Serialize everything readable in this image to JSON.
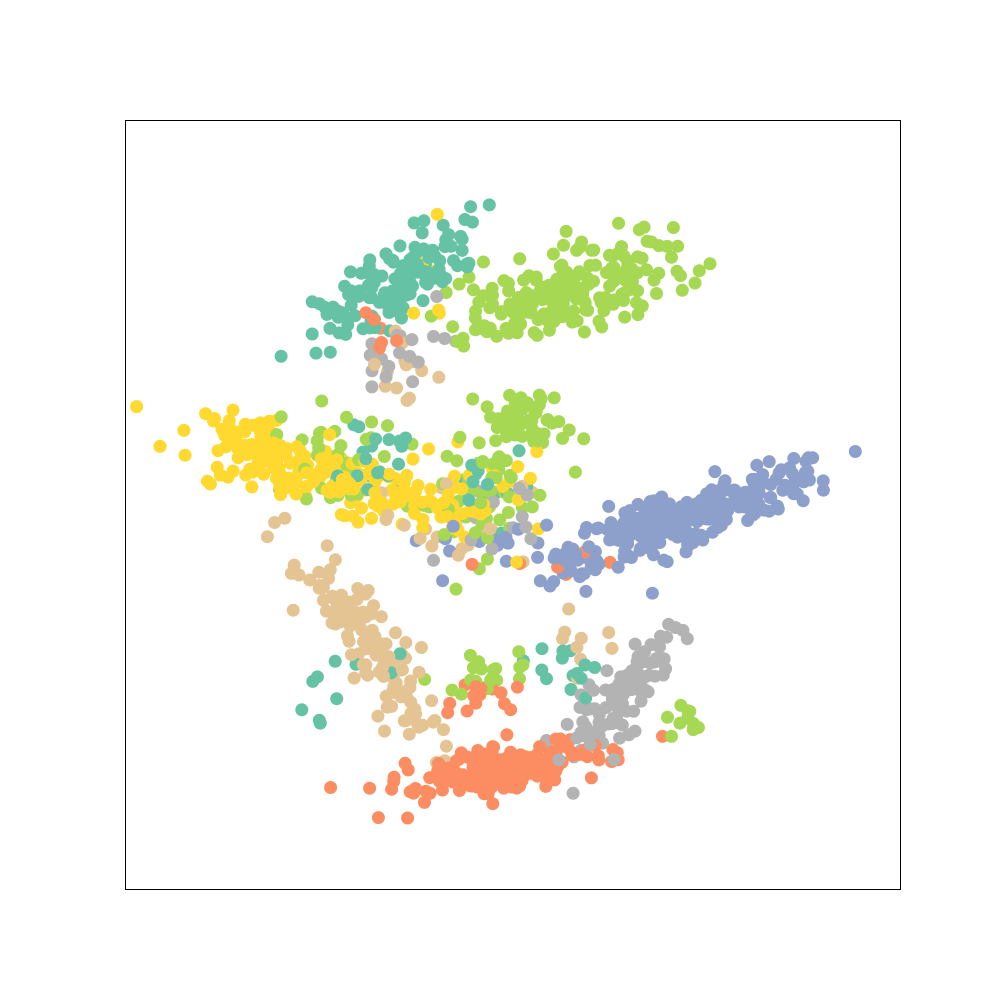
{
  "chart_data": {
    "type": "scatter",
    "title": "",
    "xlabel": "",
    "ylabel": "",
    "axes_ticks_visible": false,
    "grid": false,
    "legend": "none",
    "xlim": [
      0,
      100
    ],
    "ylim": [
      0,
      100
    ],
    "marker": "circle",
    "colors": {
      "teal": "#66c2a5",
      "orange": "#fc8d62",
      "blue": "#8da0cb",
      "lime": "#a6d854",
      "yellow": "#ffd92f",
      "tan": "#e5c494",
      "gray": "#b3b3b3"
    },
    "series": [
      {
        "color": "teal",
        "clusters": [
          {
            "cx": 34.5,
            "cy": 78.5,
            "sx": 2.2,
            "sy": 6.5,
            "rot": -55,
            "n": 130
          },
          {
            "cx": 31.0,
            "cy": 57.0,
            "sx": 4.0,
            "sy": 3.0,
            "rot": 0,
            "n": 20
          },
          {
            "cx": 59.0,
            "cy": 28.0,
            "sx": 3.5,
            "sy": 2.0,
            "rot": -25,
            "n": 14
          },
          {
            "cx": 45.0,
            "cy": 52.5,
            "sx": 4.0,
            "sy": 3.0,
            "rot": 0,
            "n": 16
          },
          {
            "cx": 27.0,
            "cy": 27.5,
            "sx": 4.0,
            "sy": 2.0,
            "rot": 25,
            "n": 10
          }
        ]
      },
      {
        "color": "orange",
        "clusters": [
          {
            "cx": 48.5,
            "cy": 15.5,
            "sx": 1.5,
            "sy": 6.5,
            "rot": -80,
            "n": 180
          },
          {
            "cx": 45.5,
            "cy": 25.0,
            "sx": 1.5,
            "sy": 2.5,
            "rot": -80,
            "n": 16
          },
          {
            "cx": 33.0,
            "cy": 72.0,
            "sx": 2.0,
            "sy": 2.0,
            "rot": 0,
            "n": 6
          },
          {
            "cx": 50.0,
            "cy": 40.0,
            "sx": 8.0,
            "sy": 3.0,
            "rot": 0,
            "n": 6
          }
        ]
      },
      {
        "color": "blue",
        "clusters": [
          {
            "cx": 81.0,
            "cy": 51.0,
            "sx": 6.0,
            "sy": 1.5,
            "rot": 20,
            "n": 110
          },
          {
            "cx": 68.0,
            "cy": 47.0,
            "sx": 5.0,
            "sy": 2.0,
            "rot": 20,
            "n": 120
          },
          {
            "cx": 59.0,
            "cy": 43.0,
            "sx": 3.5,
            "sy": 1.5,
            "rot": 15,
            "n": 35
          },
          {
            "cx": 47.0,
            "cy": 45.0,
            "sx": 5.0,
            "sy": 3.0,
            "rot": 0,
            "n": 18
          }
        ]
      },
      {
        "color": "lime",
        "clusters": [
          {
            "cx": 57.0,
            "cy": 78.0,
            "sx": 2.5,
            "sy": 8.0,
            "rot": -75,
            "n": 200
          },
          {
            "cx": 51.0,
            "cy": 60.0,
            "sx": 2.5,
            "sy": 3.5,
            "rot": -70,
            "n": 60
          },
          {
            "cx": 27.0,
            "cy": 56.5,
            "sx": 4.0,
            "sy": 3.0,
            "rot": -10,
            "n": 35
          },
          {
            "cx": 45.0,
            "cy": 50.0,
            "sx": 5.0,
            "sy": 3.5,
            "rot": 0,
            "n": 45
          },
          {
            "cx": 46.5,
            "cy": 28.0,
            "sx": 1.2,
            "sy": 3.0,
            "rot": -80,
            "n": 20
          },
          {
            "cx": 73.0,
            "cy": 21.0,
            "sx": 2.0,
            "sy": 1.5,
            "rot": -25,
            "n": 10
          }
        ]
      },
      {
        "color": "yellow",
        "clusters": [
          {
            "cx": 19.0,
            "cy": 56.0,
            "sx": 5.0,
            "sy": 2.0,
            "rot": -20,
            "n": 110
          },
          {
            "cx": 30.0,
            "cy": 53.0,
            "sx": 5.0,
            "sy": 2.0,
            "rot": -20,
            "n": 90
          },
          {
            "cx": 45.0,
            "cy": 50.0,
            "sx": 5.0,
            "sy": 3.0,
            "rot": 0,
            "n": 40
          },
          {
            "cx": 39.0,
            "cy": 79.0,
            "sx": 1.5,
            "sy": 3.0,
            "rot": 0,
            "n": 8
          }
        ]
      },
      {
        "color": "tan",
        "clusters": [
          {
            "cx": 32.0,
            "cy": 31.0,
            "sx": 1.8,
            "sy": 8.0,
            "rot": 35,
            "n": 130
          },
          {
            "cx": 42.0,
            "cy": 48.0,
            "sx": 5.0,
            "sy": 3.0,
            "rot": 0,
            "n": 22
          },
          {
            "cx": 36.0,
            "cy": 68.0,
            "sx": 3.0,
            "sy": 3.0,
            "rot": 0,
            "n": 14
          },
          {
            "cx": 59.0,
            "cy": 32.0,
            "sx": 3.0,
            "sy": 3.0,
            "rot": 0,
            "n": 10
          }
        ]
      },
      {
        "color": "gray",
        "clusters": [
          {
            "cx": 63.0,
            "cy": 24.5,
            "sx": 1.6,
            "sy": 6.0,
            "rot": -35,
            "n": 95
          },
          {
            "cx": 36.0,
            "cy": 70.0,
            "sx": 2.0,
            "sy": 4.0,
            "rot": -70,
            "n": 18
          },
          {
            "cx": 48.0,
            "cy": 47.0,
            "sx": 5.0,
            "sy": 3.0,
            "rot": 0,
            "n": 12
          }
        ]
      }
    ]
  }
}
